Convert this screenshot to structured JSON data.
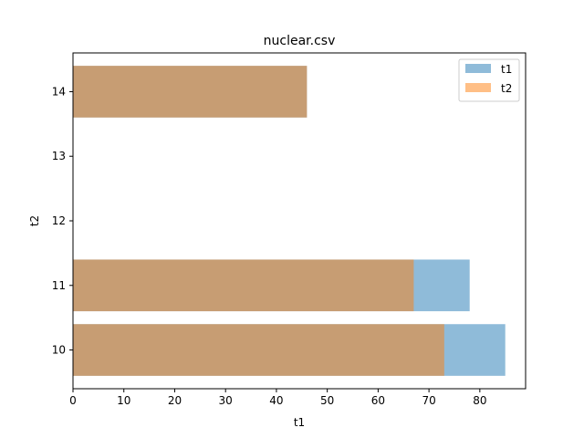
{
  "chart_data": {
    "type": "bar",
    "orientation": "horizontal",
    "title": "nuclear.csv",
    "xlabel": "t1",
    "ylabel": "t2",
    "xlim": [
      0,
      89
    ],
    "ylim": [
      9.4,
      14.6
    ],
    "x_ticks": [
      0,
      10,
      20,
      30,
      40,
      50,
      60,
      70,
      80
    ],
    "y_ticks": [
      10,
      11,
      12,
      13,
      14
    ],
    "bar_height": 0.8,
    "grid": false,
    "legend_position": "top-right",
    "series": [
      {
        "name": "t1",
        "color": "#1f77b4",
        "opacity": 0.5,
        "points": [
          {
            "y": 10,
            "value": 85
          },
          {
            "y": 11,
            "value": 78
          },
          {
            "y": 14,
            "value": 46
          }
        ]
      },
      {
        "name": "t2",
        "color": "#ff7f0e",
        "opacity": 0.5,
        "points": [
          {
            "y": 10,
            "value": 73
          },
          {
            "y": 11,
            "value": 67
          },
          {
            "y": 14,
            "value": 46
          }
        ]
      }
    ]
  }
}
